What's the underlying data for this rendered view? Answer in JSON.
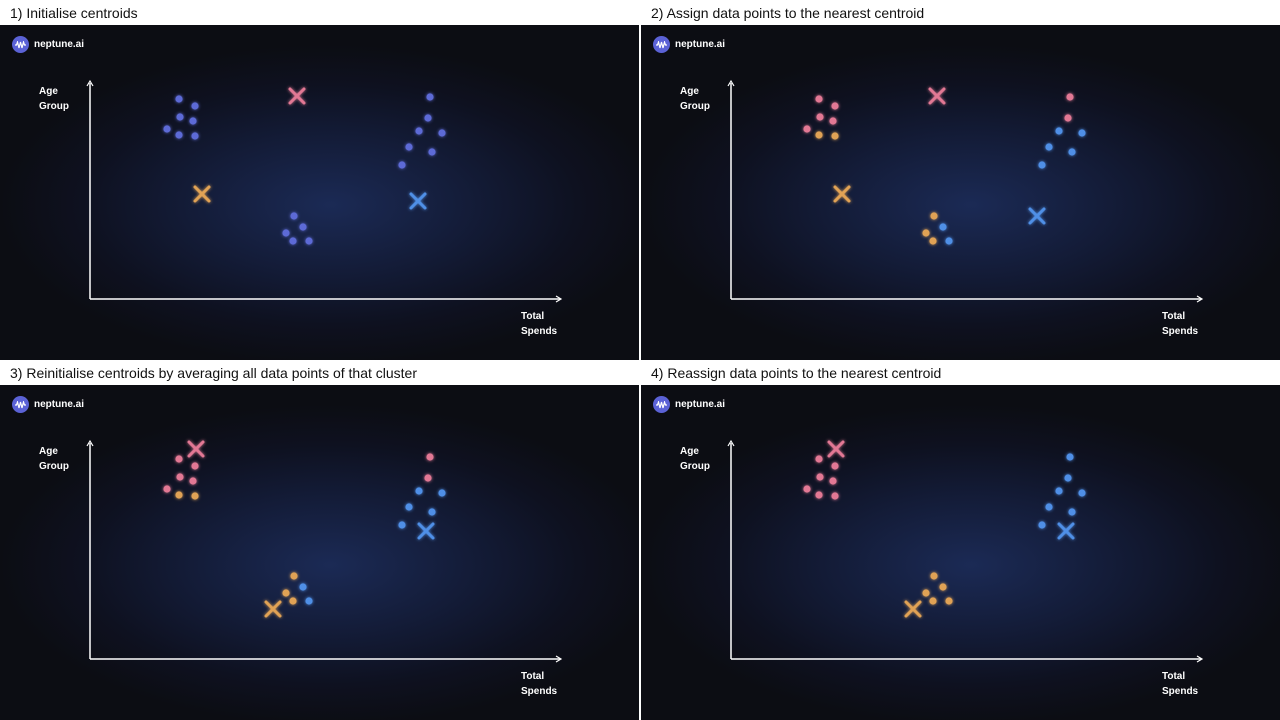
{
  "brand": {
    "logo_text": "neptune.ai",
    "icon": "neptune-wave-icon"
  },
  "axes": {
    "y_label_line1": "Age",
    "y_label_line2": "Group",
    "x_label_line1": "Total",
    "x_label_line2": "Spends"
  },
  "colors": {
    "initial": "#5d6bd6",
    "pink": "#e27894",
    "orange": "#e0a255",
    "blue": "#4f8fe6"
  },
  "panels": [
    {
      "caption": "1) Initialise centroids",
      "points": [
        [
          179,
          99,
          "initial"
        ],
        [
          195,
          106,
          "initial"
        ],
        [
          180,
          117,
          "initial"
        ],
        [
          193,
          121,
          "initial"
        ],
        [
          167,
          129,
          "initial"
        ],
        [
          179,
          135,
          "initial"
        ],
        [
          195,
          136,
          "initial"
        ],
        [
          430,
          97,
          "initial"
        ],
        [
          428,
          118,
          "initial"
        ],
        [
          419,
          131,
          "initial"
        ],
        [
          442,
          133,
          "initial"
        ],
        [
          409,
          147,
          "initial"
        ],
        [
          432,
          152,
          "initial"
        ],
        [
          402,
          165,
          "initial"
        ],
        [
          294,
          216,
          "initial"
        ],
        [
          303,
          227,
          "initial"
        ],
        [
          286,
          233,
          "initial"
        ],
        [
          293,
          241,
          "initial"
        ],
        [
          309,
          241,
          "initial"
        ]
      ],
      "centroids": [
        [
          297,
          96,
          "pink"
        ],
        [
          202,
          194,
          "orange"
        ],
        [
          418,
          201,
          "blue"
        ]
      ]
    },
    {
      "caption": "2) Assign data points to the nearest centroid",
      "points": [
        [
          819,
          99,
          "pink"
        ],
        [
          835,
          106,
          "pink"
        ],
        [
          820,
          117,
          "pink"
        ],
        [
          833,
          121,
          "pink"
        ],
        [
          807,
          129,
          "pink"
        ],
        [
          819,
          135,
          "orange"
        ],
        [
          835,
          136,
          "orange"
        ],
        [
          1070,
          97,
          "pink"
        ],
        [
          1068,
          118,
          "pink"
        ],
        [
          1059,
          131,
          "blue"
        ],
        [
          1082,
          133,
          "blue"
        ],
        [
          1049,
          147,
          "blue"
        ],
        [
          1072,
          152,
          "blue"
        ],
        [
          1042,
          165,
          "blue"
        ],
        [
          934,
          216,
          "orange"
        ],
        [
          943,
          227,
          "blue"
        ],
        [
          926,
          233,
          "orange"
        ],
        [
          933,
          241,
          "orange"
        ],
        [
          949,
          241,
          "blue"
        ]
      ],
      "centroids": [
        [
          937,
          96,
          "pink"
        ],
        [
          842,
          194,
          "orange"
        ],
        [
          1037,
          216,
          "blue"
        ]
      ]
    },
    {
      "caption": "3) Reinitialise centroids by averaging all data points of that cluster",
      "points": [
        [
          179,
          459,
          "pink"
        ],
        [
          195,
          466,
          "pink"
        ],
        [
          180,
          477,
          "pink"
        ],
        [
          193,
          481,
          "pink"
        ],
        [
          167,
          489,
          "pink"
        ],
        [
          179,
          495,
          "orange"
        ],
        [
          195,
          496,
          "orange"
        ],
        [
          430,
          457,
          "pink"
        ],
        [
          428,
          478,
          "pink"
        ],
        [
          419,
          491,
          "blue"
        ],
        [
          442,
          493,
          "blue"
        ],
        [
          409,
          507,
          "blue"
        ],
        [
          432,
          512,
          "blue"
        ],
        [
          402,
          525,
          "blue"
        ],
        [
          294,
          576,
          "orange"
        ],
        [
          303,
          587,
          "blue"
        ],
        [
          286,
          593,
          "orange"
        ],
        [
          293,
          601,
          "orange"
        ],
        [
          309,
          601,
          "blue"
        ]
      ],
      "centroids": [
        [
          196,
          449,
          "pink"
        ],
        [
          273,
          609,
          "orange"
        ],
        [
          426,
          531,
          "blue"
        ]
      ]
    },
    {
      "caption": "4) Reassign data points to the nearest centroid",
      "points": [
        [
          819,
          459,
          "pink"
        ],
        [
          835,
          466,
          "pink"
        ],
        [
          820,
          477,
          "pink"
        ],
        [
          833,
          481,
          "pink"
        ],
        [
          807,
          489,
          "pink"
        ],
        [
          819,
          495,
          "pink"
        ],
        [
          835,
          496,
          "pink"
        ],
        [
          1070,
          457,
          "blue"
        ],
        [
          1068,
          478,
          "blue"
        ],
        [
          1059,
          491,
          "blue"
        ],
        [
          1082,
          493,
          "blue"
        ],
        [
          1049,
          507,
          "blue"
        ],
        [
          1072,
          512,
          "blue"
        ],
        [
          1042,
          525,
          "blue"
        ],
        [
          934,
          576,
          "orange"
        ],
        [
          943,
          587,
          "orange"
        ],
        [
          926,
          593,
          "orange"
        ],
        [
          933,
          601,
          "orange"
        ],
        [
          949,
          601,
          "orange"
        ]
      ],
      "centroids": [
        [
          836,
          449,
          "pink"
        ],
        [
          913,
          609,
          "orange"
        ],
        [
          1066,
          531,
          "blue"
        ]
      ]
    }
  ]
}
